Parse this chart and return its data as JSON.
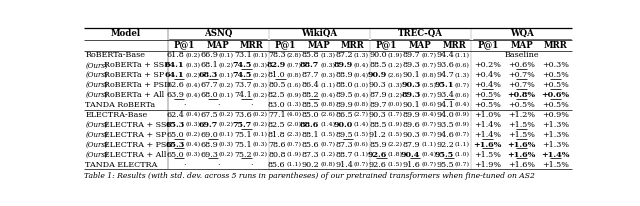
{
  "col_groups": [
    "ASNQ",
    "WikiQA",
    "TREC-QA",
    "WQA"
  ],
  "rows": [
    {
      "model": "RoBERTa-Base",
      "ours": false,
      "cells": [
        {
          "val": "61.8",
          "std": "0.2",
          "bold": false,
          "ul": false
        },
        {
          "val": "66.9",
          "std": "0.1",
          "bold": false,
          "ul": false
        },
        {
          "val": "73.1",
          "std": "0.1",
          "bold": false,
          "ul": false
        },
        {
          "val": "78.3",
          "std": "2.8",
          "bold": false,
          "ul": false
        },
        {
          "val": "85.8",
          "std": "1.3",
          "bold": false,
          "ul": false
        },
        {
          "val": "87.2",
          "std": "1.3",
          "bold": false,
          "ul": false
        },
        {
          "val": "90.0",
          "std": "1.9",
          "bold": false,
          "ul": false
        },
        {
          "val": "89.7",
          "std": "0.7",
          "bold": false,
          "ul": false
        },
        {
          "val": "94.4",
          "std": "1.1",
          "bold": false,
          "ul": false
        },
        {
          "val": "",
          "std": "",
          "bold": false,
          "ul": false
        },
        {
          "val": "Baseline",
          "std": "",
          "bold": false,
          "ul": false
        },
        {
          "val": "",
          "std": "",
          "bold": false,
          "ul": false
        }
      ]
    },
    {
      "model": "(Ours) RoBERTa + SSP",
      "ours": true,
      "cells": [
        {
          "val": "64.1",
          "std": "0.3",
          "bold": true,
          "ul": false
        },
        {
          "val": "68.1",
          "std": "0.2",
          "bold": false,
          "ul": false
        },
        {
          "val": "74.5",
          "std": "0.3",
          "bold": true,
          "ul": true
        },
        {
          "val": "82.9",
          "std": "0.7",
          "bold": true,
          "ul": false
        },
        {
          "val": "88.7",
          "std": "0.3",
          "bold": true,
          "ul": false
        },
        {
          "val": "89.9",
          "std": "0.4",
          "bold": true,
          "ul": false
        },
        {
          "val": "88.5",
          "std": "1.2",
          "bold": false,
          "ul": false
        },
        {
          "val": "89.3",
          "std": "0.7",
          "bold": false,
          "ul": false
        },
        {
          "val": "93.6",
          "std": "0.6",
          "bold": false,
          "ul": false
        },
        {
          "val": "+0.2%",
          "std": "",
          "bold": false,
          "ul": false
        },
        {
          "val": "+0.6%",
          "std": "",
          "bold": false,
          "ul": true
        },
        {
          "val": "+0.3%",
          "std": "",
          "bold": false,
          "ul": false
        }
      ]
    },
    {
      "model": "(Ours) RoBERTa + SP",
      "ours": true,
      "cells": [
        {
          "val": "64.1",
          "std": "0.2",
          "bold": true,
          "ul": true
        },
        {
          "val": "68.3",
          "std": "0.1",
          "bold": true,
          "ul": true
        },
        {
          "val": "74.5",
          "std": "0.2",
          "bold": true,
          "ul": true
        },
        {
          "val": "81.0",
          "std": "0.8",
          "bold": false,
          "ul": true
        },
        {
          "val": "87.7",
          "std": "0.3",
          "bold": false,
          "ul": false
        },
        {
          "val": "88.9",
          "std": "0.4",
          "bold": false,
          "ul": false
        },
        {
          "val": "90.9",
          "std": "2.6",
          "bold": true,
          "ul": false
        },
        {
          "val": "90.1",
          "std": "0.8",
          "bold": false,
          "ul": false
        },
        {
          "val": "94.7",
          "std": "1.3",
          "bold": false,
          "ul": false
        },
        {
          "val": "+0.4%",
          "std": "",
          "bold": false,
          "ul": false
        },
        {
          "val": "+0.7%",
          "std": "",
          "bold": false,
          "ul": true
        },
        {
          "val": "+0.5%",
          "std": "",
          "bold": false,
          "ul": true
        }
      ]
    },
    {
      "model": "(Ours) RoBERTa + PSD",
      "ours": true,
      "cells": [
        {
          "val": "62.6",
          "std": "0.4",
          "bold": false,
          "ul": false
        },
        {
          "val": "67.7",
          "std": "0.2",
          "bold": false,
          "ul": false
        },
        {
          "val": "73.7",
          "std": "0.3",
          "bold": false,
          "ul": false
        },
        {
          "val": "80.5",
          "std": "1.6",
          "bold": false,
          "ul": false
        },
        {
          "val": "86.4",
          "std": "1.1",
          "bold": false,
          "ul": false
        },
        {
          "val": "88.0",
          "std": "1.0",
          "bold": false,
          "ul": false
        },
        {
          "val": "90.3",
          "std": "1.3",
          "bold": false,
          "ul": false
        },
        {
          "val": "90.3",
          "std": "0.5",
          "bold": true,
          "ul": false
        },
        {
          "val": "95.1",
          "std": "0.7",
          "bold": true,
          "ul": false
        },
        {
          "val": "+0.4%",
          "std": "",
          "bold": false,
          "ul": true
        },
        {
          "val": "+0.7%",
          "std": "",
          "bold": false,
          "ul": true
        },
        {
          "val": "+0.5%",
          "std": "",
          "bold": false,
          "ul": true
        }
      ]
    },
    {
      "model": "(Ours) RoBERTa + All",
      "ours": true,
      "cells": [
        {
          "val": "63.9",
          "std": "0.4",
          "bold": false,
          "ul": true
        },
        {
          "val": "68.0",
          "std": "0.1",
          "bold": false,
          "ul": true
        },
        {
          "val": "74.1",
          "std": "0.2",
          "bold": false,
          "ul": true
        },
        {
          "val": "82.5",
          "std": "0.9",
          "bold": false,
          "ul": false
        },
        {
          "val": "88.2",
          "std": "0.4",
          "bold": false,
          "ul": true
        },
        {
          "val": "89.5",
          "std": "0.4",
          "bold": false,
          "ul": false
        },
        {
          "val": "87.9",
          "std": "1.2",
          "bold": false,
          "ul": false
        },
        {
          "val": "89.3",
          "std": "0.7",
          "bold": true,
          "ul": false
        },
        {
          "val": "93.4",
          "std": "0.6",
          "bold": false,
          "ul": true
        },
        {
          "val": "+0.5%",
          "std": "",
          "bold": false,
          "ul": true
        },
        {
          "val": "+0.8%",
          "std": "",
          "bold": true,
          "ul": true
        },
        {
          "val": "+0.6%",
          "std": "",
          "bold": true,
          "ul": true
        }
      ]
    },
    {
      "model": "TANDA RoBERTa",
      "ours": false,
      "cells": [
        {
          "val": "·",
          "std": "",
          "bold": false,
          "ul": false
        },
        {
          "val": "·",
          "std": "",
          "bold": false,
          "ul": false
        },
        {
          "val": "·",
          "std": "",
          "bold": false,
          "ul": false
        },
        {
          "val": "83.0",
          "std": "1.3",
          "bold": false,
          "ul": false
        },
        {
          "val": "88.5",
          "std": "0.8",
          "bold": false,
          "ul": false
        },
        {
          "val": "89.9",
          "std": "0.8",
          "bold": false,
          "ul": false
        },
        {
          "val": "89.7",
          "std": "0.0",
          "bold": false,
          "ul": false
        },
        {
          "val": "90.1",
          "std": "0.6",
          "bold": false,
          "ul": false
        },
        {
          "val": "94.1",
          "std": "0.4",
          "bold": false,
          "ul": false
        },
        {
          "val": "+0.5%",
          "std": "",
          "bold": false,
          "ul": false
        },
        {
          "val": "+0.5%",
          "std": "",
          "bold": false,
          "ul": false
        },
        {
          "val": "+0.5%",
          "std": "",
          "bold": false,
          "ul": false
        }
      ]
    },
    {
      "model": "ELECTRA-Base",
      "ours": false,
      "sep": true,
      "cells": [
        {
          "val": "62.4",
          "std": "0.4",
          "bold": false,
          "ul": false
        },
        {
          "val": "67.5",
          "std": "0.2",
          "bold": false,
          "ul": false
        },
        {
          "val": "73.6",
          "std": "0.2",
          "bold": false,
          "ul": false
        },
        {
          "val": "77.1",
          "std": "4.0",
          "bold": false,
          "ul": false
        },
        {
          "val": "85.0",
          "std": "2.6",
          "bold": false,
          "ul": false
        },
        {
          "val": "86.5",
          "std": "2.7",
          "bold": false,
          "ul": false
        },
        {
          "val": "90.3",
          "std": "1.7",
          "bold": false,
          "ul": false
        },
        {
          "val": "89.9",
          "std": "0.4",
          "bold": false,
          "ul": false
        },
        {
          "val": "94.0",
          "std": "0.9",
          "bold": false,
          "ul": false
        },
        {
          "val": "+1.0%",
          "std": "",
          "bold": false,
          "ul": false
        },
        {
          "val": "+1.2%",
          "std": "",
          "bold": false,
          "ul": false
        },
        {
          "val": "+0.9%",
          "std": "",
          "bold": false,
          "ul": false
        }
      ]
    },
    {
      "model": "(Ours) ELECTRA + SSP",
      "ours": true,
      "cells": [
        {
          "val": "65.3",
          "std": "0.3",
          "bold": true,
          "ul": false
        },
        {
          "val": "69.7",
          "std": "0.2",
          "bold": true,
          "ul": false
        },
        {
          "val": "75.7",
          "std": "0.2",
          "bold": true,
          "ul": true
        },
        {
          "val": "82.5",
          "std": "2.0",
          "bold": false,
          "ul": false
        },
        {
          "val": "88.6",
          "std": "1.4",
          "bold": true,
          "ul": false
        },
        {
          "val": "90.0",
          "std": "1.4",
          "bold": true,
          "ul": false
        },
        {
          "val": "88.5",
          "std": "1.9",
          "bold": false,
          "ul": false
        },
        {
          "val": "89.6",
          "std": "0.7",
          "bold": false,
          "ul": false
        },
        {
          "val": "93.5",
          "std": "0.9",
          "bold": false,
          "ul": false
        },
        {
          "val": "+1.4%",
          "std": "",
          "bold": false,
          "ul": false
        },
        {
          "val": "+1.5%",
          "std": "",
          "bold": false,
          "ul": true
        },
        {
          "val": "+1.3%",
          "std": "",
          "bold": false,
          "ul": false
        }
      ]
    },
    {
      "model": "(Ours) ELECTRA + SP",
      "ours": true,
      "cells": [
        {
          "val": "65.0",
          "std": "0.2",
          "bold": false,
          "ul": true
        },
        {
          "val": "69.0",
          "std": "0.1",
          "bold": false,
          "ul": true
        },
        {
          "val": "75.1",
          "std": "0.1",
          "bold": false,
          "ul": false
        },
        {
          "val": "81.8",
          "std": "2.3",
          "bold": false,
          "ul": false
        },
        {
          "val": "88.1",
          "std": "1.5",
          "bold": false,
          "ul": false
        },
        {
          "val": "89.5",
          "std": "1.5",
          "bold": false,
          "ul": true
        },
        {
          "val": "91.2",
          "std": "1.5",
          "bold": false,
          "ul": false
        },
        {
          "val": "90.3",
          "std": "0.7",
          "bold": false,
          "ul": false
        },
        {
          "val": "94.6",
          "std": "0.7",
          "bold": false,
          "ul": false
        },
        {
          "val": "+1.4%",
          "std": "",
          "bold": false,
          "ul": true
        },
        {
          "val": "+1.5%",
          "std": "",
          "bold": false,
          "ul": true
        },
        {
          "val": "+1.3%",
          "std": "",
          "bold": false,
          "ul": false
        }
      ]
    },
    {
      "model": "(Ours) ELECTRA + PSD",
      "ours": true,
      "cells": [
        {
          "val": "65.3",
          "std": "0.4",
          "bold": true,
          "ul": true
        },
        {
          "val": "68.9",
          "std": "0.3",
          "bold": false,
          "ul": false
        },
        {
          "val": "75.1",
          "std": "0.3",
          "bold": false,
          "ul": false
        },
        {
          "val": "78.6",
          "std": "0.7",
          "bold": false,
          "ul": false
        },
        {
          "val": "85.6",
          "std": "0.7",
          "bold": false,
          "ul": false
        },
        {
          "val": "87.3",
          "std": "0.6",
          "bold": false,
          "ul": false
        },
        {
          "val": "85.9",
          "std": "2.2",
          "bold": false,
          "ul": false
        },
        {
          "val": "87.9",
          "std": "1.1",
          "bold": false,
          "ul": false
        },
        {
          "val": "92.2",
          "std": "1.1",
          "bold": false,
          "ul": false
        },
        {
          "val": "+1.6%",
          "std": "",
          "bold": true,
          "ul": true
        },
        {
          "val": "+1.6%",
          "std": "",
          "bold": true,
          "ul": true
        },
        {
          "val": "+1.3%",
          "std": "",
          "bold": false,
          "ul": false
        }
      ]
    },
    {
      "model": "(Ours) ELECTRA + All",
      "ours": true,
      "cells": [
        {
          "val": "65.0",
          "std": "0.3",
          "bold": false,
          "ul": true
        },
        {
          "val": "69.3",
          "std": "0.2",
          "bold": false,
          "ul": true
        },
        {
          "val": "75.2",
          "std": "0.2",
          "bold": false,
          "ul": true
        },
        {
          "val": "80.8",
          "std": "1.9",
          "bold": false,
          "ul": false
        },
        {
          "val": "87.3",
          "std": "1.2",
          "bold": false,
          "ul": false
        },
        {
          "val": "88.7",
          "std": "1.1",
          "bold": false,
          "ul": false
        },
        {
          "val": "92.6",
          "std": "1.8",
          "bold": true,
          "ul": true
        },
        {
          "val": "90.4",
          "std": "0.4",
          "bold": true,
          "ul": true
        },
        {
          "val": "95.5",
          "std": "1.0",
          "bold": true,
          "ul": true
        },
        {
          "val": "+1.5%",
          "std": "",
          "bold": false,
          "ul": false
        },
        {
          "val": "+1.6%",
          "std": "",
          "bold": true,
          "ul": true
        },
        {
          "val": "+1.4%",
          "std": "",
          "bold": true,
          "ul": true
        }
      ]
    },
    {
      "model": "TANDA ELECTRA",
      "ours": false,
      "cells": [
        {
          "val": "·",
          "std": "",
          "bold": false,
          "ul": false
        },
        {
          "val": "·",
          "std": "",
          "bold": false,
          "ul": false
        },
        {
          "val": "·",
          "std": "",
          "bold": false,
          "ul": false
        },
        {
          "val": "85.6",
          "std": "1.1",
          "bold": false,
          "ul": false
        },
        {
          "val": "90.2",
          "std": "0.8",
          "bold": false,
          "ul": false
        },
        {
          "val": "91.4",
          "std": "0.7",
          "bold": false,
          "ul": false
        },
        {
          "val": "92.6",
          "std": "1.5",
          "bold": false,
          "ul": false
        },
        {
          "val": "91.6",
          "std": "0.7",
          "bold": false,
          "ul": false
        },
        {
          "val": "95.5",
          "std": "0.7",
          "bold": false,
          "ul": false
        },
        {
          "val": "+1.9%",
          "std": "",
          "bold": false,
          "ul": false
        },
        {
          "val": "+1.6%",
          "std": "",
          "bold": false,
          "ul": false
        },
        {
          "val": "+1.5%",
          "std": "",
          "bold": false,
          "ul": false
        }
      ]
    }
  ],
  "caption": "Table 1: Results (with std. dev. across 5 runs in parentheses) of our pretrained transformers when fine-tuned on AS2",
  "fs_main": 5.8,
  "fs_std": 4.5,
  "fs_header": 6.2,
  "fs_caption": 5.5
}
